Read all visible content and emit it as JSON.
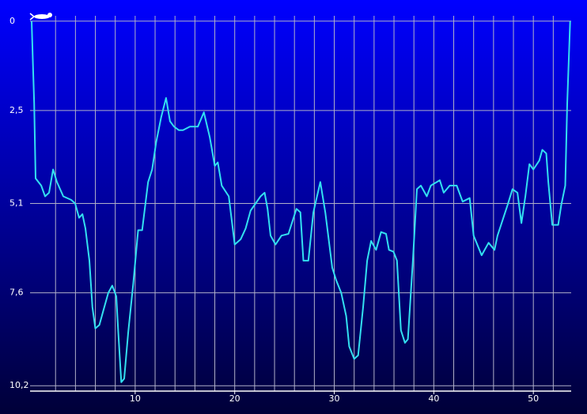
{
  "chart_data": {
    "type": "line",
    "color": "#33e0f0",
    "grid": true,
    "y_inverted": true,
    "xlim": [
      -0.56,
      53.8
    ],
    "ylim": [
      -0.15,
      10.35
    ],
    "xticks": [
      10,
      20,
      30,
      40,
      50
    ],
    "xgrid": [
      2,
      4,
      6,
      8,
      10,
      12,
      14,
      16,
      18,
      20,
      22,
      24,
      26,
      28,
      30,
      32,
      34,
      36,
      38,
      40,
      42,
      44,
      46,
      48,
      50,
      52
    ],
    "yticks": [
      0,
      {
        "value": 2.5,
        "label": "2,5"
      },
      {
        "value": 5.1,
        "label": "5,1"
      },
      {
        "value": 7.6,
        "label": "7,6"
      },
      {
        "value": 10.2,
        "label": "10,2"
      }
    ],
    "x": [
      -0.4,
      -0.3,
      -0.15,
      0,
      0.56,
      0.95,
      1.35,
      1.75,
      2.14,
      2.78,
      3.57,
      3.97,
      4.37,
      4.7,
      5.0,
      5.4,
      5.7,
      6.0,
      6.4,
      6.8,
      7.3,
      7.7,
      8.1,
      8.3,
      8.6,
      8.9,
      9.3,
      9.8,
      10.3,
      10.7,
      11.3,
      11.7,
      12.1,
      12.6,
      13.1,
      13.5,
      13.9,
      14.4,
      14.8,
      15.5,
      16.3,
      16.9,
      17.5,
      18.0,
      18.3,
      18.7,
      19.4,
      20.0,
      20.6,
      21.1,
      21.6,
      22.1,
      22.6,
      23.0,
      23.3,
      23.6,
      24.1,
      24.7,
      25.4,
      26.2,
      26.6,
      26.9,
      27.4,
      27.9,
      28.6,
      29.1,
      29.8,
      30.2,
      30.7,
      31.2,
      31.5,
      32.0,
      32.4,
      32.9,
      33.3,
      33.7,
      34.2,
      34.7,
      35.2,
      35.5,
      35.95,
      36.3,
      36.7,
      37.1,
      37.4,
      37.9,
      38.3,
      38.7,
      39.3,
      39.7,
      40.6,
      41.0,
      41.6,
      42.3,
      42.9,
      43.6,
      44.0,
      44.8,
      45.5,
      46.1,
      46.4,
      47.4,
      47.9,
      48.4,
      48.8,
      49.2,
      49.6,
      50.0,
      50.6,
      50.9,
      51.3,
      51.5,
      51.9,
      52.5,
      52.8,
      53.2,
      53.4,
      53.7
    ],
    "values": [
      0,
      0.95,
      2.3,
      4.4,
      4.6,
      4.9,
      4.8,
      4.15,
      4.5,
      4.9,
      5.0,
      5.1,
      5.5,
      5.4,
      5.8,
      6.7,
      8.0,
      8.6,
      8.5,
      8.1,
      7.6,
      7.4,
      7.7,
      8.7,
      10.1,
      10.0,
      8.7,
      7.35,
      5.85,
      5.85,
      4.5,
      4.15,
      3.4,
      2.7,
      2.15,
      2.8,
      2.95,
      3.05,
      3.05,
      2.95,
      2.95,
      2.55,
      3.25,
      4.05,
      3.95,
      4.6,
      4.9,
      6.25,
      6.1,
      5.8,
      5.3,
      5.1,
      4.9,
      4.8,
      5.25,
      6.0,
      6.25,
      6.0,
      5.95,
      5.25,
      5.35,
      6.7,
      6.7,
      5.35,
      4.5,
      5.35,
      6.9,
      7.25,
      7.6,
      8.25,
      9.1,
      9.45,
      9.35,
      8.0,
      6.7,
      6.15,
      6.4,
      5.9,
      5.95,
      6.4,
      6.45,
      6.7,
      8.65,
      9.0,
      8.9,
      6.7,
      4.7,
      4.6,
      4.9,
      4.6,
      4.45,
      4.8,
      4.6,
      4.6,
      5.05,
      4.95,
      6.0,
      6.55,
      6.2,
      6.4,
      6.0,
      5.15,
      4.7,
      4.8,
      5.65,
      4.9,
      4.0,
      4.15,
      3.9,
      3.6,
      3.7,
      4.5,
      5.7,
      5.7,
      5.15,
      4.6,
      2.3,
      0
    ]
  }
}
